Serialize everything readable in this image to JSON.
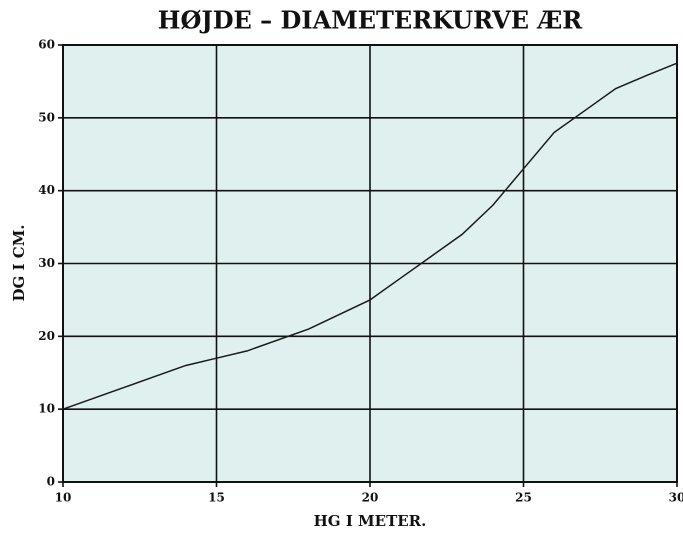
{
  "chart_data": {
    "type": "line",
    "title": "HØJDE – DIAMETERKURVE ÆR",
    "x_label": "HG I METER.",
    "y_label": "DG I CM.",
    "x": [
      10,
      12,
      14,
      15,
      16,
      18,
      20,
      21,
      22,
      23,
      24,
      25,
      26,
      27,
      28,
      29,
      30
    ],
    "series": [
      {
        "name": "ÆR",
        "color": "#1a1a1a",
        "values": [
          10,
          13,
          16,
          17,
          18,
          21,
          25,
          28,
          31,
          34,
          38,
          43,
          48,
          51,
          54,
          55.8,
          57.5
        ]
      }
    ],
    "xlim": [
      10,
      30
    ],
    "xticks": [
      10,
      15,
      20,
      25,
      30
    ],
    "ylim": [
      0,
      60
    ],
    "yticks": [
      0,
      10,
      20,
      30,
      40,
      50,
      60
    ],
    "grid": true
  }
}
